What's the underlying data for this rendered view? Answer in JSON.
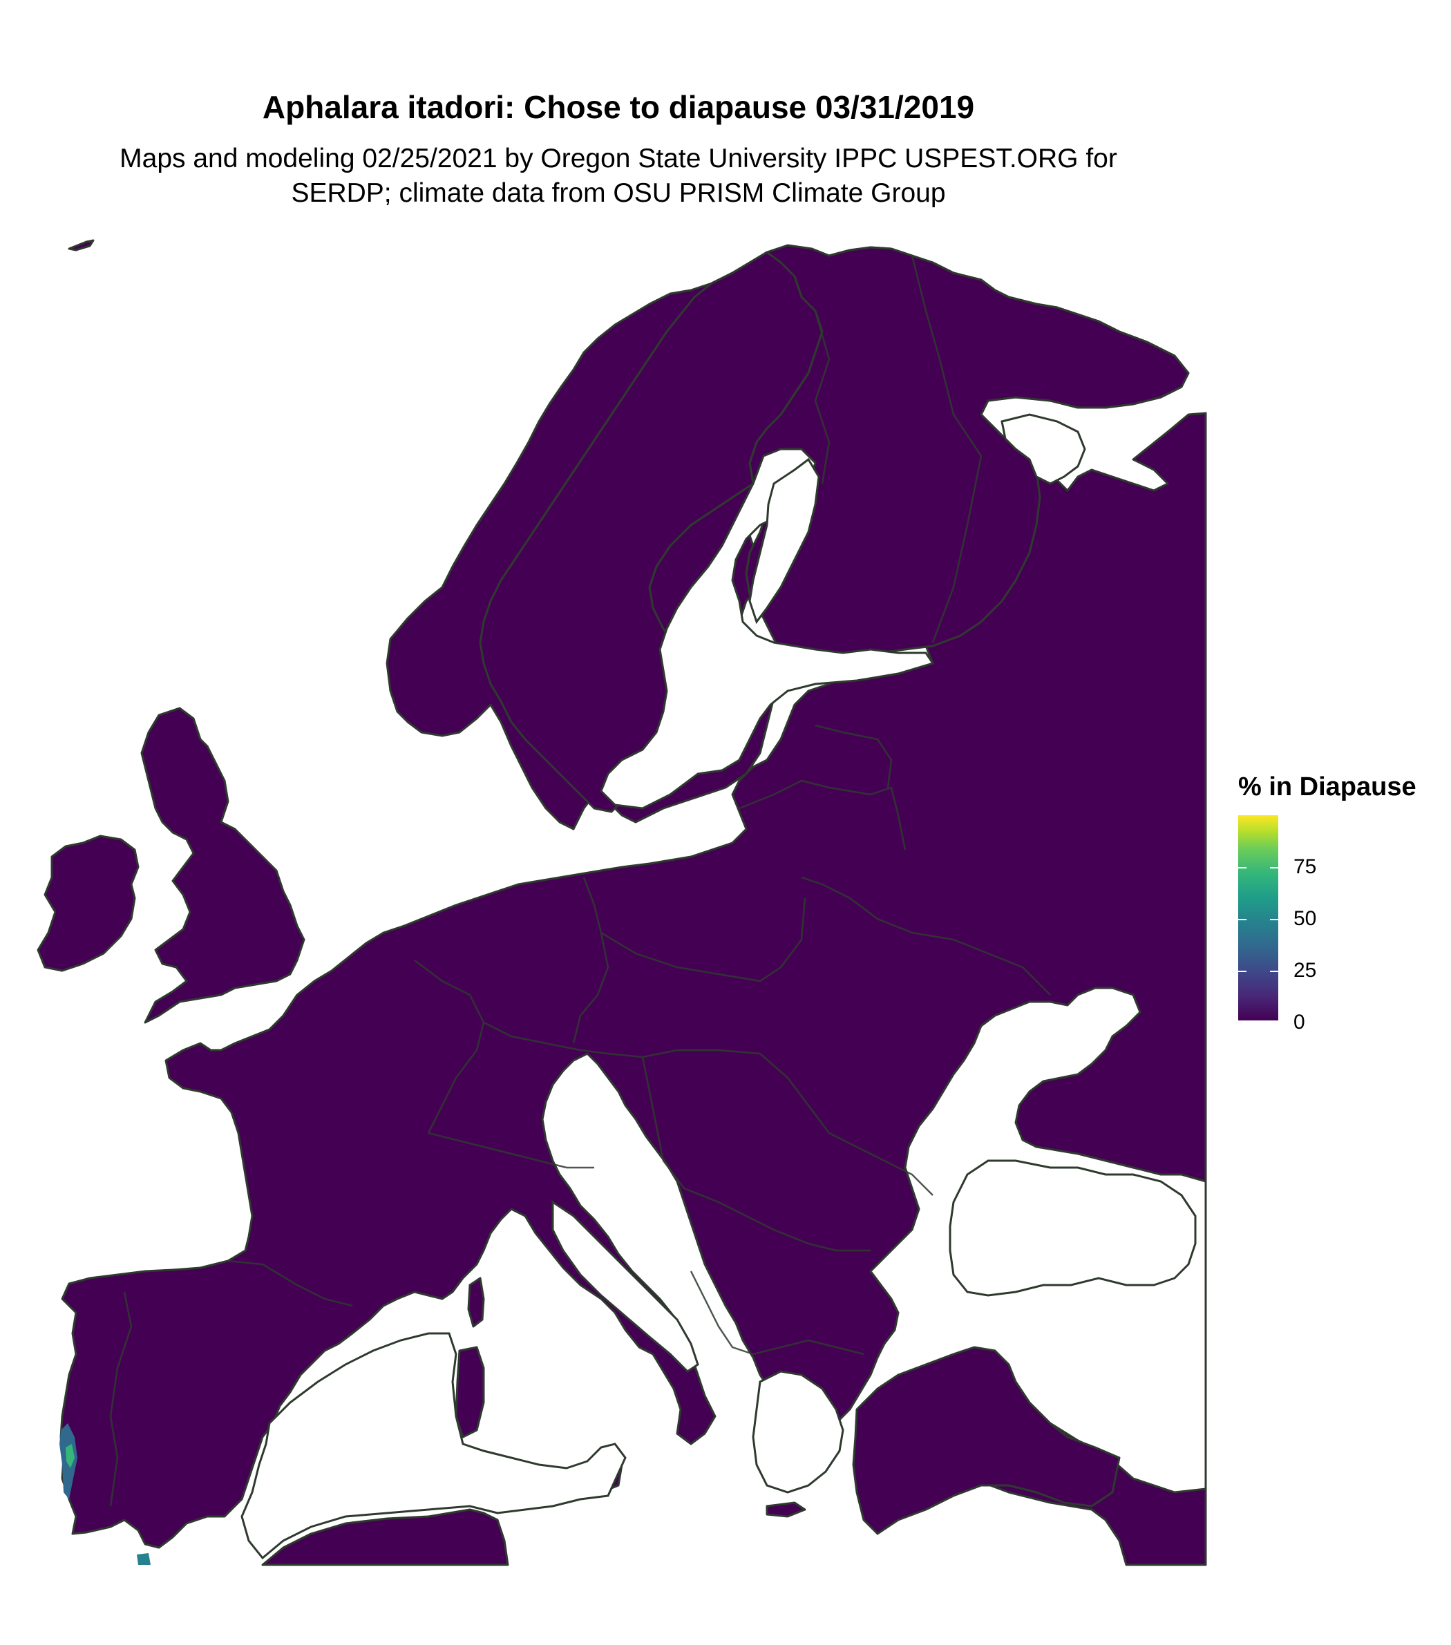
{
  "title": "Aphalara itadori: Chose to diapause 03/31/2019",
  "subtitle_line1": "Maps and modeling 02/25/2021 by Oregon State University IPPC USPEST.ORG for",
  "subtitle_line2": "SERDP; climate data from OSU PRISM Climate Group",
  "legend": {
    "title": "% in Diapause",
    "ticks": [
      "75",
      "50",
      "25",
      "0"
    ],
    "range": [
      0,
      100
    ],
    "colormap": "viridis"
  },
  "colors": {
    "land": "#440154",
    "border": "#2f3a2f",
    "water": "#ffffff",
    "hotspot_green": "#35b779",
    "hotspot_teal": "#26828e"
  },
  "map": {
    "region": "Europe",
    "values_shown": "Near 0% across the continent; elevated values only along the western coast of Portugal"
  }
}
